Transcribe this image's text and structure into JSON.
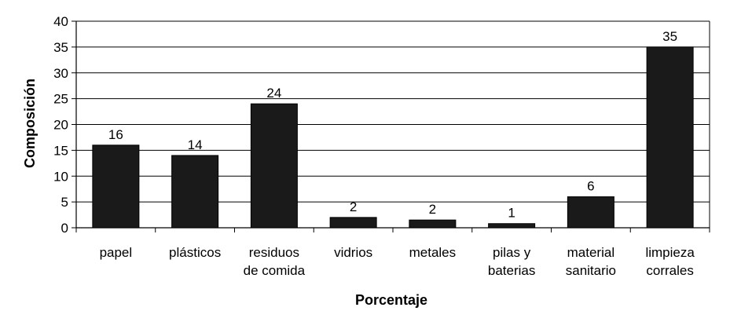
{
  "chart_data": {
    "type": "bar",
    "title": "",
    "xlabel": "Porcentaje",
    "ylabel": "Composición",
    "categories": [
      [
        "papel"
      ],
      [
        "plásticos"
      ],
      [
        "residuos",
        "de comida"
      ],
      [
        "vidrios"
      ],
      [
        "metales"
      ],
      [
        "pilas y",
        "baterias"
      ],
      [
        "material",
        "sanitario"
      ],
      [
        "limpieza",
        "corrales"
      ]
    ],
    "values": [
      16,
      14,
      24,
      2,
      2,
      1,
      6,
      35
    ],
    "bar_heights": [
      16,
      14,
      24,
      2,
      1.5,
      0.8,
      6,
      35
    ],
    "ylim": [
      0,
      40
    ],
    "yticks": [
      0,
      5,
      10,
      15,
      20,
      25,
      30,
      35,
      40
    ],
    "grid": true,
    "legend": "none",
    "colors": {
      "bar": "#1a1a1a",
      "grid": "#000000",
      "axis": "#000000"
    }
  }
}
